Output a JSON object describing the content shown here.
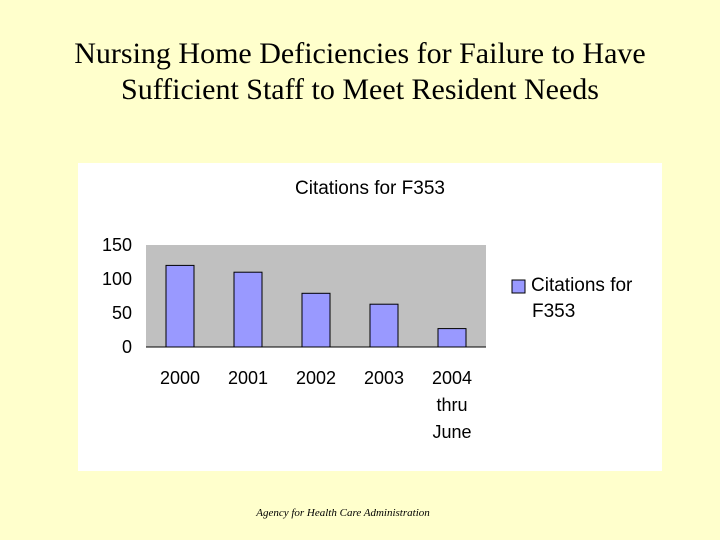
{
  "slide": {
    "title_line1": "Nursing Home Deficiencies for Failure to Have",
    "title_line2": "Sufficient Staff to Meet Resident Needs",
    "footer": "Agency for Health Care Administration"
  },
  "chart_data": {
    "type": "bar",
    "title": "Citations for F353",
    "categories": [
      [
        "2000"
      ],
      [
        "2001"
      ],
      [
        "2002"
      ],
      [
        "2003"
      ],
      [
        "2004",
        "thru",
        "June"
      ]
    ],
    "series": [
      {
        "name": "Citations for F353",
        "values": [
          120,
          110,
          79,
          63,
          27
        ],
        "color": "#9999ff"
      }
    ],
    "ylim": [
      0,
      150
    ],
    "yticks": [
      0,
      50,
      100,
      150
    ],
    "grid": false,
    "plot_background": "#c0c0c0",
    "legend_position": "right",
    "legend_label_lines": [
      "Citations for",
      "F353"
    ]
  }
}
